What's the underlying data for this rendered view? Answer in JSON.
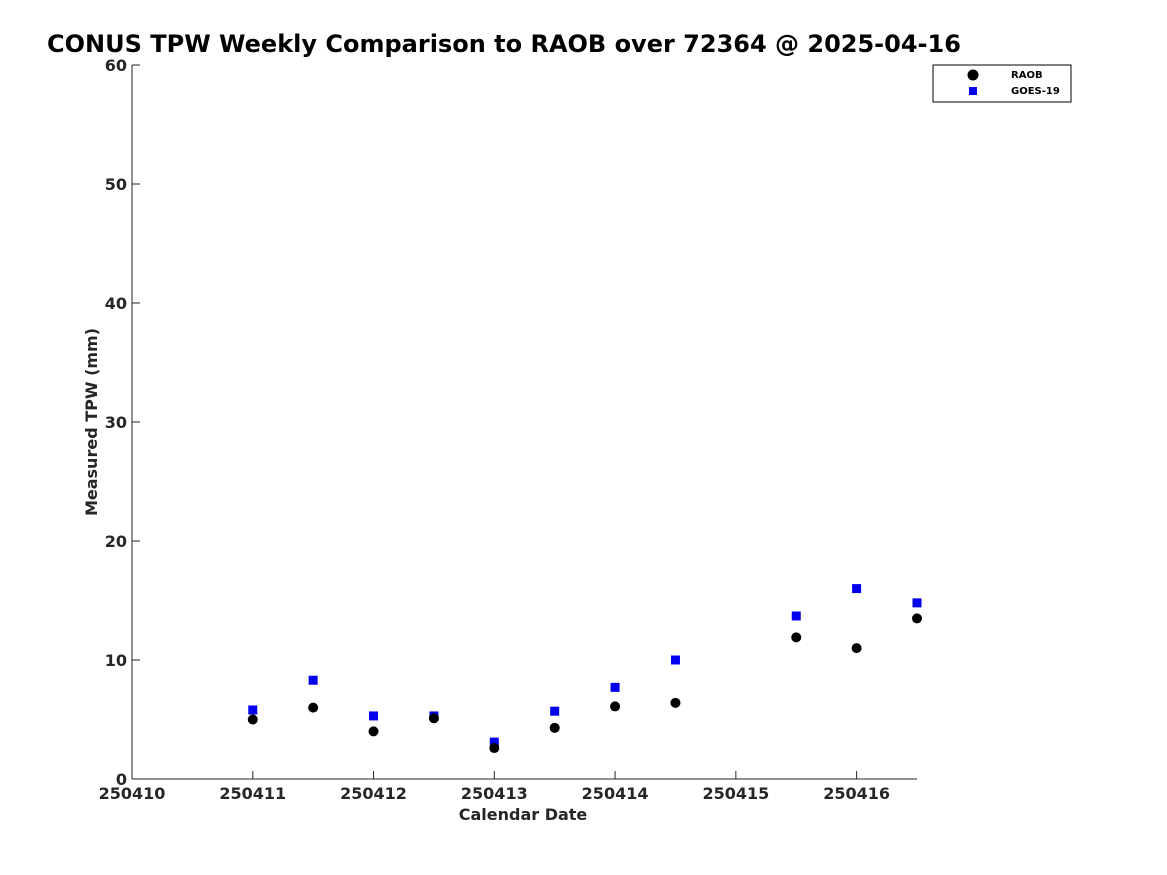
{
  "chart_data": {
    "type": "scatter",
    "title": "CONUS TPW Weekly Comparison to RAOB over 72364 @ 2025-04-16",
    "xlabel": "Calendar Date",
    "ylabel": "Measured TPW (mm)",
    "xlim": [
      250410,
      250416.5
    ],
    "ylim": [
      0,
      60
    ],
    "xticks": [
      250410,
      250411,
      250412,
      250413,
      250414,
      250415,
      250416
    ],
    "xtick_labels": [
      "250410",
      "250411",
      "250412",
      "250413",
      "250414",
      "250415",
      "250416"
    ],
    "yticks": [
      0,
      10,
      20,
      30,
      40,
      50,
      60
    ],
    "ytick_labels": [
      "0",
      "10",
      "20",
      "30",
      "40",
      "50",
      "60"
    ],
    "grid": false,
    "legend_position": "top-right",
    "series": [
      {
        "name": "RAOB",
        "marker": "circle",
        "color": "#000000",
        "x": [
          250411,
          250411.5,
          250412,
          250412.5,
          250413,
          250413.5,
          250414,
          250414.5,
          250415.5,
          250416,
          250416.5
        ],
        "y": [
          5.0,
          6.0,
          4.0,
          5.1,
          2.6,
          4.3,
          6.1,
          6.4,
          11.9,
          11.0,
          13.5
        ]
      },
      {
        "name": "GOES-19",
        "marker": "square",
        "color": "#0000ee",
        "x": [
          250411,
          250411.5,
          250412,
          250412.5,
          250413,
          250413.5,
          250414,
          250414.5,
          250415.5,
          250416,
          250416.5
        ],
        "y": [
          5.8,
          8.3,
          5.3,
          5.3,
          3.1,
          5.7,
          7.7,
          10.0,
          13.7,
          16.0,
          14.8
        ]
      }
    ]
  }
}
